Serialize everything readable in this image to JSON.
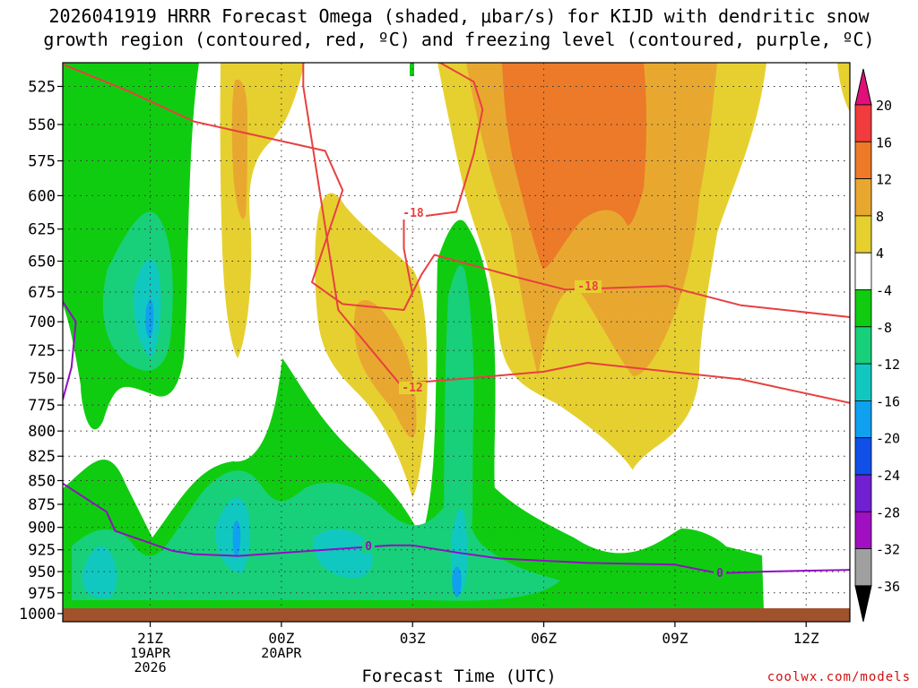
{
  "header": {
    "title_line1": "2026041919 HRRR Forecast Omega (shaded, μbar/s) for KIJD with dendritic snow",
    "title_line2": "growth region (contoured, red, ºC) and freezing level (contoured, purple, ºC)"
  },
  "footer": {
    "xlabel": "Forecast Time (UTC)",
    "credit": "coolwx.com/models"
  },
  "chart_data": {
    "type": "heatmap",
    "title": "2026041919 HRRR Forecast Omega (shaded, μbar/s) for KIJD with dendritic snow growth region (contoured, red, ºC) and freezing level (contoured, purple, ºC)",
    "xlabel": "Forecast Time (UTC)",
    "ylabel": "",
    "x_range_hours_from_2026041919": [
      0,
      18
    ],
    "y_range_hPa": [
      1010,
      510
    ],
    "y_scale": "log-pressure (inverted)",
    "y_ticks": [
      525,
      550,
      575,
      600,
      625,
      650,
      675,
      700,
      725,
      750,
      775,
      800,
      825,
      850,
      875,
      900,
      925,
      950,
      975,
      1000
    ],
    "x_ticks": [
      {
        "hour": 2,
        "label": "21Z",
        "sub1": "19APR",
        "sub2": "2026"
      },
      {
        "hour": 5,
        "label": "00Z",
        "sub1": "20APR",
        "sub2": ""
      },
      {
        "hour": 8,
        "label": "03Z",
        "sub1": "",
        "sub2": ""
      },
      {
        "hour": 11,
        "label": "06Z",
        "sub1": "",
        "sub2": ""
      },
      {
        "hour": 14,
        "label": "09Z",
        "sub1": "",
        "sub2": ""
      },
      {
        "hour": 17,
        "label": "12Z",
        "sub1": "",
        "sub2": ""
      }
    ],
    "grid": true,
    "colorbar": {
      "placement": "right",
      "boundaries": [
        20,
        16,
        12,
        8,
        4,
        -4,
        -8,
        -12,
        -16,
        -20,
        -24,
        -28,
        -32,
        -36
      ],
      "colors": [
        "#f03c3c",
        "#ec7a28",
        "#e8a830",
        "#e6d030",
        "#ffffff",
        "#10cc10",
        "#18d07a",
        "#10c8c0",
        "#10a0f0",
        "#1050e8",
        "#7020d0",
        "#a010c0",
        "#a0a0a0"
      ],
      "top_extend_color": "#e0107a",
      "bottom_extend_color": "#000000"
    },
    "omega_regions_approx": [
      {
        "range": "-8 to -4",
        "desc": "broad upward-motion band below 700 hPa from 20Z to 11Z and left column 19-22Z to 525 hPa"
      },
      {
        "range": "-12 to -8",
        "desc": "low levels 925-990 hPa 19Z-06Z; column near 21Z 650-760 hPa; column near 04Z 650-1000 hPa"
      },
      {
        "range": "-16 to -12",
        "desc": "small cores near 21Z 700 hPa, 23Z 930 hPa, 04Z 965 hPa"
      },
      {
        "range": "4 to 8",
        "desc": "sinking 23Z-01Z aloft, 01Z-03Z 625-870 hPa, and 04Z-10Z 510-840 hPa"
      },
      {
        "range": "8 to 12",
        "desc": "cores 02Z 700-860 hPa, 04Z-09Z 510-760 hPa"
      },
      {
        "range": "12 to 16",
        "desc": "core 05Z-07Z 510-640 hPa"
      }
    ],
    "contours": [
      {
        "name": "-12",
        "color": "#e84040",
        "points_hour_hPa": [
          [
            5.5,
            510
          ],
          [
            5.5,
            525
          ],
          [
            6.3,
            690
          ],
          [
            7.7,
            755
          ],
          [
            9.0,
            751
          ],
          [
            11.0,
            744
          ],
          [
            12.0,
            736
          ],
          [
            15.5,
            751
          ],
          [
            18.0,
            773
          ]
        ]
      },
      {
        "name": "-18",
        "color": "#e84040",
        "points_hour_hPa": [
          [
            0,
            511
          ],
          [
            1.5,
            528
          ],
          [
            3.0,
            548
          ],
          [
            6.0,
            568
          ],
          [
            6.4,
            596
          ],
          [
            5.7,
            667
          ],
          [
            6.4,
            685
          ],
          [
            7.8,
            690
          ],
          [
            8.2,
            661
          ],
          [
            8.5,
            645
          ],
          [
            10.5,
            664
          ],
          [
            11.5,
            673
          ],
          [
            13.8,
            670
          ],
          [
            15.5,
            686
          ],
          [
            18.0,
            696
          ]
        ]
      },
      {
        "name": "-18",
        "color": "#e84040",
        "points_hour_hPa": [
          [
            8.3,
            505
          ],
          [
            9.4,
            522
          ],
          [
            9.6,
            540
          ],
          [
            9.4,
            570
          ],
          [
            9.0,
            612
          ],
          [
            8.3,
            615
          ],
          [
            7.8,
            617
          ],
          [
            7.8,
            640
          ],
          [
            8.0,
            677
          ]
        ]
      },
      {
        "name": "0",
        "color": "#9010c0",
        "points_hour_hPa": [
          [
            0,
            853
          ],
          [
            1.0,
            883
          ],
          [
            1.2,
            904
          ],
          [
            2.5,
            926
          ],
          [
            3.0,
            930
          ],
          [
            4.0,
            932
          ],
          [
            6.0,
            925
          ],
          [
            7.5,
            920
          ],
          [
            8.0,
            920
          ],
          [
            9.0,
            928
          ],
          [
            10.0,
            935
          ],
          [
            12.0,
            940
          ],
          [
            14.0,
            942
          ],
          [
            15.0,
            952
          ],
          [
            16.0,
            950
          ],
          [
            18.0,
            948
          ]
        ]
      },
      {
        "name": "0",
        "color": "#9010c0",
        "points_hour_hPa": [
          [
            0,
            683
          ],
          [
            0.3,
            700
          ],
          [
            0.2,
            740
          ],
          [
            0,
            770
          ]
        ]
      }
    ]
  }
}
